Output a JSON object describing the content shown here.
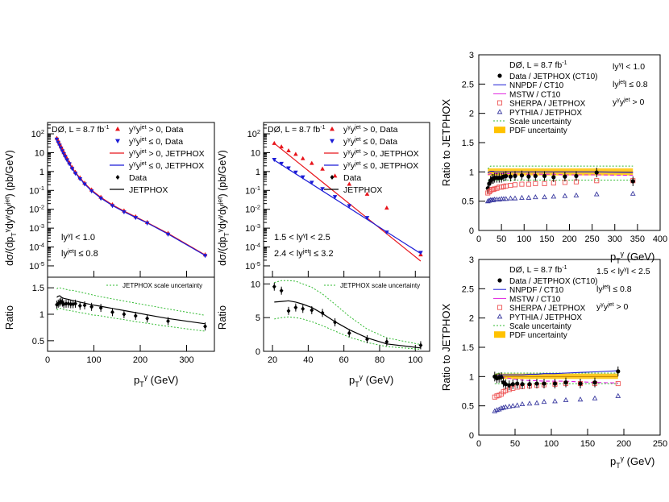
{
  "colors": {
    "red": "#e8141b",
    "blue": "#1b1bd6",
    "black": "#000000",
    "green": "#33bb33",
    "magenta": "#e020e0",
    "navy": "#3a3aa0",
    "orange": "#ffc200",
    "salmon": "#ee5555"
  },
  "chart_data": [
    {
      "id": "p1",
      "type": "line",
      "experiment": "DØ, L = 8.7 fb",
      "lumi_exp": "-1",
      "ylabel": "dσ/(dp_T^γ dy^γ dy^jet) (pb/GeV)",
      "xlim": [
        0,
        360
      ],
      "ylim_log10": [
        -5.6,
        2.6
      ],
      "yticks": [
        "10^-5",
        "10^-4",
        "10^-3",
        "10^-2",
        "10^-1",
        "1",
        "10",
        "10^2"
      ],
      "cuts": [
        "|y^γ| < 1.0",
        "|y^jet| ≤ 0.8"
      ],
      "legend": [
        {
          "label": "y^γ y^jet > 0, Data",
          "marker": "tri-up",
          "color": "red"
        },
        {
          "label": "y^γ y^jet ≤ 0, Data",
          "marker": "tri-down",
          "color": "blue"
        },
        {
          "label": "y^γ y^jet > 0, JETPHOX",
          "line": "red"
        },
        {
          "label": "y^γ y^jet ≤ 0, JETPHOX",
          "line": "blue"
        },
        {
          "label": "Data",
          "marker": "diamond",
          "color": "black"
        },
        {
          "label": "JETPHOX",
          "line": "black"
        }
      ],
      "x": [
        20,
        23,
        26,
        29,
        32,
        35,
        38,
        42,
        47,
        53,
        60,
        70,
        80,
        95,
        115,
        140,
        165,
        190,
        215,
        260,
        340
      ],
      "data_same_sign": [
        60,
        42,
        30,
        21,
        15,
        10.5,
        7.5,
        5,
        3,
        1.7,
        0.95,
        0.48,
        0.25,
        0.11,
        0.045,
        0.018,
        0.0085,
        0.0042,
        0.0021,
        0.00055,
        4e-05
      ],
      "data_opposite_sign": [
        50,
        34,
        24,
        17,
        12,
        8.5,
        6,
        4,
        2.5,
        1.4,
        0.78,
        0.4,
        0.21,
        0.09,
        0.037,
        0.015,
        0.007,
        0.0035,
        0.0018,
        0.00046,
        3.4e-05
      ],
      "ratio_panel": {
        "ylabel": "Ratio",
        "ylim": [
          0.3,
          1.7
        ],
        "yticks": [
          0.5,
          1,
          1.5
        ],
        "xticks": [
          0,
          100,
          200,
          300
        ],
        "xlabel": "p_T^γ (GeV)",
        "scale_label": "JETPHOX scale uncertainty",
        "x": [
          20,
          23,
          26,
          29,
          32,
          35,
          40,
          45,
          50,
          55,
          60,
          70,
          80,
          95,
          115,
          140,
          165,
          190,
          215,
          260,
          340
        ],
        "data": [
          1.18,
          1.2,
          1.22,
          1.24,
          1.22,
          1.19,
          1.2,
          1.2,
          1.19,
          1.19,
          1.2,
          1.16,
          1.17,
          1.14,
          1.12,
          1.04,
          1.0,
          0.97,
          0.92,
          0.87,
          0.77
        ],
        "theory": [
          1.32,
          1.34,
          1.35,
          1.33,
          1.31,
          1.3,
          1.29,
          1.28,
          1.27,
          1.26,
          1.25,
          1.23,
          1.21,
          1.18,
          1.15,
          1.11,
          1.07,
          1.03,
          0.99,
          0.92,
          0.82
        ],
        "scale_up": [
          1.48,
          1.5,
          1.5,
          1.49,
          1.49,
          1.48,
          1.47,
          1.46,
          1.45,
          1.45,
          1.44,
          1.42,
          1.4,
          1.37,
          1.33,
          1.29,
          1.25,
          1.21,
          1.17,
          1.1,
          0.98
        ],
        "scale_down": [
          1.08,
          1.1,
          1.11,
          1.11,
          1.1,
          1.09,
          1.08,
          1.07,
          1.07,
          1.06,
          1.05,
          1.03,
          1.02,
          0.99,
          0.97,
          0.93,
          0.9,
          0.86,
          0.83,
          0.77,
          0.68
        ]
      }
    },
    {
      "id": "p2",
      "type": "line",
      "experiment": "DØ, L = 8.7 fb",
      "lumi_exp": "-1",
      "ylabel": "dσ/(dp_T^γ dy^γ dy^jet) (pb/GeV)",
      "xlim": [
        15,
        108
      ],
      "ylim_log10": [
        -5.6,
        2.6
      ],
      "yticks": [
        "10^-5",
        "10^-4",
        "10^-3",
        "10^-2",
        "10^-1",
        "1",
        "10",
        "10^2"
      ],
      "cuts": [
        "1.5 < |y^γ| < 2.5",
        "2.4 < |y^jet| ≤ 3.2"
      ],
      "legend": [
        {
          "label": "y^γ y^jet > 0, Data",
          "marker": "tri-up",
          "color": "red"
        },
        {
          "label": "y^γ y^jet ≤ 0, Data",
          "marker": "tri-down",
          "color": "blue"
        },
        {
          "label": "y^γ y^jet > 0, JETPHOX",
          "line": "red"
        },
        {
          "label": "y^γ y^jet ≤ 0, JETPHOX",
          "line": "blue"
        },
        {
          "label": "Data",
          "marker": "diamond",
          "color": "black"
        },
        {
          "label": "JETPHOX",
          "line": "black"
        }
      ],
      "x": [
        21,
        25,
        29,
        33,
        37,
        42,
        48,
        55,
        63,
        73,
        84,
        103
      ],
      "data_same_sign": [
        32,
        21,
        13,
        8.5,
        5,
        2.8,
        1.4,
        0.6,
        0.22,
        0.065,
        0.012,
        4e-05
      ],
      "data_opposite_sign": [
        4.2,
        2.6,
        1.5,
        0.9,
        0.5,
        0.26,
        0.12,
        0.045,
        0.015,
        0.0035,
        0.0006,
        5e-05
      ],
      "theory_same_sign": [
        31,
        1.8e-05
      ],
      "theory_opposite_sign": [
        4.0,
        4.5e-05
      ],
      "ratio_panel": {
        "ylabel": "Ratio",
        "ylim": [
          0,
          11
        ],
        "yticks": [
          0,
          5,
          10
        ],
        "xticks": [
          20,
          40,
          60,
          80,
          100
        ],
        "xlabel": "p_T^γ (GeV)",
        "scale_label": "JETPHOX scale uncertainty",
        "x": [
          21,
          25,
          29,
          33,
          37,
          42,
          48,
          55,
          63,
          73,
          84,
          103
        ],
        "data": [
          9.6,
          9.0,
          6.0,
          6.5,
          6.3,
          6.1,
          5.7,
          4.3,
          2.7,
          1.8,
          1.4,
          0.9
        ],
        "theory": [
          7.3,
          7.4,
          7.5,
          7.3,
          7.0,
          6.5,
          5.6,
          4.4,
          3.2,
          2.0,
          1.1,
          0.5
        ],
        "scale_up": [
          10.2,
          10.5,
          10.5,
          10.4,
          10.0,
          9.5,
          8.5,
          7.0,
          5.2,
          3.3,
          2.0,
          1.0
        ],
        "scale_down": [
          4.8,
          5.0,
          5.1,
          5.0,
          4.8,
          4.4,
          3.8,
          3.0,
          2.1,
          1.3,
          0.7,
          0.3
        ]
      }
    },
    {
      "id": "p3",
      "type": "scatter",
      "experiment": "DØ, L = 8.7 fb",
      "lumi_exp": "-1",
      "ylabel": "Ratio to JETPHOX",
      "xlabel": "p_T^γ (GeV)",
      "xlim": [
        0,
        400
      ],
      "ylim": [
        0,
        3
      ],
      "xticks": [
        0,
        50,
        100,
        150,
        200,
        250,
        300,
        350,
        400
      ],
      "yticks": [
        0,
        0.5,
        1,
        1.5,
        2,
        2.5,
        3
      ],
      "cuts": [
        "|y^γ| < 1.0",
        "|y^jet| ≤ 0.8",
        "y^γ y^jet > 0"
      ],
      "legend": [
        {
          "label": "Data / JETPHOX (CT10)",
          "marker": "dot"
        },
        {
          "label": "NNPDF / CT10",
          "line": "blue"
        },
        {
          "label": "MSTW / CT10",
          "line": "magenta"
        },
        {
          "label": "SHERPA / JETPHOX",
          "marker": "square"
        },
        {
          "label": "PYTHIA / JETPHOX",
          "marker": "triangle"
        },
        {
          "label": "Scale uncertainty",
          "line": "green"
        },
        {
          "label": "PDF uncertainty",
          "band": "orange"
        }
      ],
      "x": [
        20,
        23,
        26,
        29,
        32,
        35,
        40,
        45,
        50,
        55,
        60,
        70,
        80,
        95,
        110,
        125,
        145,
        165,
        190,
        215,
        260,
        340
      ],
      "data": [
        0.72,
        0.8,
        0.85,
        0.88,
        0.88,
        0.9,
        0.9,
        0.9,
        0.9,
        0.92,
        0.93,
        0.92,
        0.93,
        0.94,
        0.92,
        0.93,
        0.93,
        0.91,
        0.92,
        0.93,
        0.99,
        0.84
      ],
      "sherpa": [
        0.64,
        0.66,
        0.68,
        0.7,
        0.7,
        0.71,
        0.72,
        0.74,
        0.74,
        0.75,
        0.76,
        0.77,
        0.78,
        0.79,
        0.79,
        0.8,
        0.8,
        0.81,
        0.82,
        0.83,
        0.85,
        0.85
      ],
      "pythia": [
        0.5,
        0.51,
        0.52,
        0.52,
        0.52,
        0.53,
        0.53,
        0.53,
        0.54,
        0.54,
        0.54,
        0.55,
        0.55,
        0.56,
        0.56,
        0.57,
        0.57,
        0.58,
        0.59,
        0.6,
        0.62,
        0.63
      ],
      "nnpdf": [
        0.98,
        1.0,
        1.01,
        1.01,
        1.01,
        1.0,
        1.0,
        1.0,
        1.0,
        1.0,
        1.0,
        1.0,
        1.0,
        1.0,
        1.0,
        1.0,
        1.0,
        1.0,
        1.0,
        1.0,
        1.0,
        0.99
      ],
      "mstw": [
        0.95,
        0.96,
        0.97,
        0.97,
        0.97,
        0.97,
        0.97,
        0.97,
        0.97,
        0.97,
        0.97,
        0.97,
        0.96,
        0.96,
        0.96,
        0.96,
        0.96,
        0.96,
        0.95,
        0.95,
        0.95,
        0.94
      ],
      "scale_up": [
        1.05,
        1.08,
        1.1,
        1.1,
        1.1,
        1.1,
        1.1,
        1.1,
        1.1,
        1.1,
        1.1,
        1.1,
        1.1,
        1.1,
        1.1,
        1.1,
        1.1,
        1.1,
        1.1,
        1.1,
        1.1,
        1.1
      ],
      "scale_down": [
        0.85,
        0.86,
        0.86,
        0.86,
        0.86,
        0.86,
        0.86,
        0.86,
        0.86,
        0.86,
        0.86,
        0.86,
        0.86,
        0.86,
        0.86,
        0.86,
        0.86,
        0.86,
        0.86,
        0.86,
        0.86,
        0.86
      ],
      "pdf_band": [
        0.94,
        1.06
      ]
    },
    {
      "id": "p4",
      "type": "scatter",
      "experiment": "DØ, L = 8.7 fb",
      "lumi_exp": "-1",
      "ylabel": "Ratio to JETPHOX",
      "xlabel": "p_T^γ (GeV)",
      "xlim": [
        0,
        250
      ],
      "ylim": [
        0,
        3
      ],
      "xticks": [
        0,
        50,
        100,
        150,
        200,
        250
      ],
      "yticks": [
        0,
        0.5,
        1,
        1.5,
        2,
        2.5,
        3
      ],
      "cuts": [
        "1.5 < |y^γ| < 2.5",
        "|y^jet| ≤ 0.8",
        "y^γ y^jet > 0"
      ],
      "legend": [
        {
          "label": "Data / JETPHOX (CT10)",
          "marker": "dot"
        },
        {
          "label": "NNPDF / CT10",
          "line": "blue"
        },
        {
          "label": "MSTW / CT10",
          "line": "magenta"
        },
        {
          "label": "SHERPA / JETPHOX",
          "marker": "square"
        },
        {
          "label": "PYTHIA / JETPHOX",
          "marker": "triangle"
        },
        {
          "label": "Scale uncertainty",
          "line": "green"
        },
        {
          "label": "PDF uncertainty",
          "band": "orange"
        }
      ],
      "x": [
        22,
        25,
        28,
        31,
        34,
        37,
        42,
        47,
        53,
        60,
        70,
        80,
        90,
        105,
        120,
        140,
        160,
        192
      ],
      "data": [
        1.0,
        0.97,
        0.98,
        0.99,
        0.9,
        0.87,
        0.85,
        0.87,
        0.88,
        0.87,
        0.87,
        0.88,
        0.88,
        0.88,
        0.9,
        0.88,
        0.9,
        1.09
      ],
      "sherpa": [
        0.65,
        0.67,
        0.68,
        0.7,
        0.74,
        0.76,
        0.78,
        0.8,
        0.82,
        0.83,
        0.84,
        0.85,
        0.86,
        0.87,
        0.88,
        0.88,
        0.88,
        0.88
      ],
      "pythia": [
        0.41,
        0.43,
        0.44,
        0.46,
        0.47,
        0.48,
        0.49,
        0.5,
        0.51,
        0.53,
        0.54,
        0.55,
        0.57,
        0.58,
        0.6,
        0.61,
        0.63,
        0.67
      ],
      "nnpdf": [
        1.0,
        1.02,
        1.03,
        1.03,
        1.03,
        1.03,
        1.03,
        1.03,
        1.03,
        1.03,
        1.04,
        1.04,
        1.05,
        1.05,
        1.06,
        1.07,
        1.08,
        1.1
      ],
      "mstw": [
        0.98,
        0.99,
        1.0,
        1.0,
        0.99,
        0.98,
        0.97,
        0.96,
        0.95,
        0.94,
        0.93,
        0.93,
        0.92,
        0.92,
        0.92,
        0.91,
        0.9,
        0.89
      ],
      "scale_up": [
        1.03,
        1.05,
        1.06,
        1.06,
        1.06,
        1.06,
        1.06,
        1.06,
        1.06,
        1.06,
        1.06,
        1.06,
        1.06,
        1.06,
        1.06,
        1.06,
        1.06,
        1.06
      ],
      "scale_down": [
        0.88,
        0.88,
        0.88,
        0.88,
        0.88,
        0.88,
        0.88,
        0.88,
        0.88,
        0.88,
        0.88,
        0.88,
        0.88,
        0.88,
        0.88,
        0.88,
        0.88,
        0.88
      ],
      "pdf_band": [
        0.96,
        1.05
      ]
    }
  ]
}
